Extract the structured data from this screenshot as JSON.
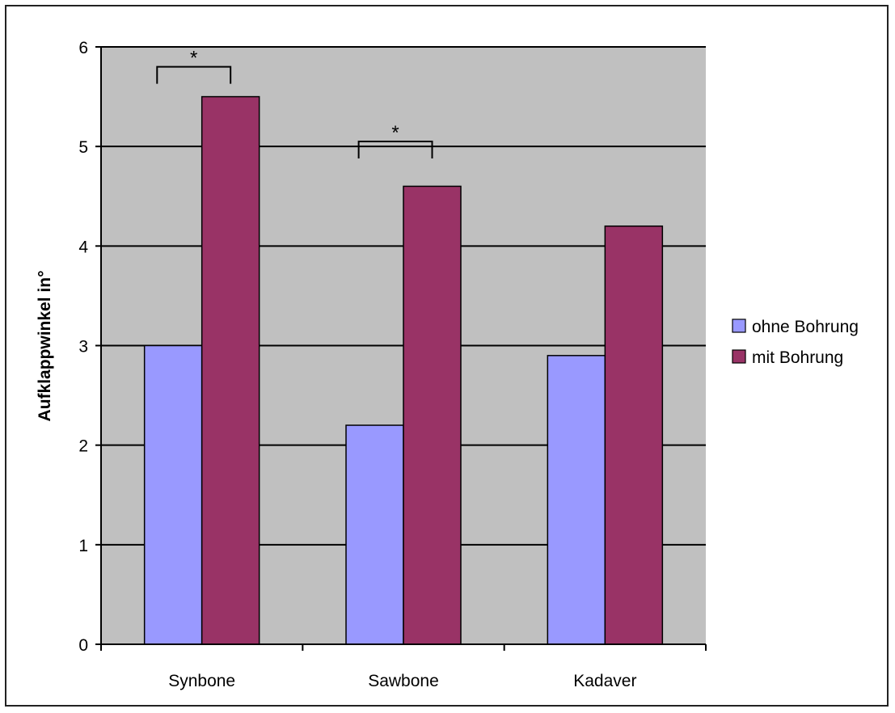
{
  "chart_data": {
    "type": "bar",
    "title": "",
    "xlabel": "",
    "ylabel": "Aufklappwinkel in°",
    "categories": [
      "Synbone",
      "Sawbone",
      "Kadaver"
    ],
    "series": [
      {
        "name": "ohne Bohrung",
        "values": [
          3.0,
          2.2,
          2.9
        ],
        "color": "#9999ff"
      },
      {
        "name": "mit Bohrung",
        "values": [
          5.5,
          4.6,
          4.2
        ],
        "color": "#993366"
      }
    ],
    "ylim": [
      0,
      6
    ],
    "yticks": [
      "0",
      "1",
      "2",
      "3",
      "4",
      "5",
      "6"
    ],
    "grid": true,
    "plot_background": "#c0c0c0",
    "legend_position": "right",
    "annotations": [
      {
        "text": "*",
        "category": "Synbone",
        "level": 5.8
      },
      {
        "text": "*",
        "category": "Sawbone",
        "level": 5.05
      }
    ]
  }
}
